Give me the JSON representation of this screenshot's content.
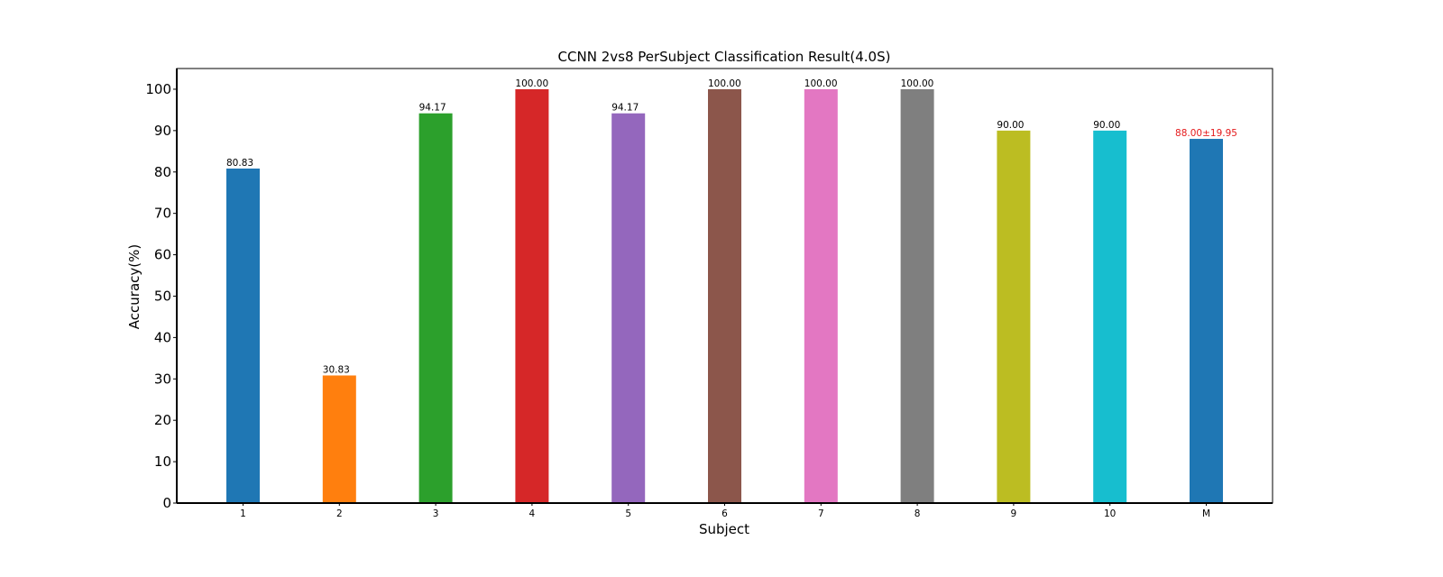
{
  "chart_data": {
    "type": "bar",
    "title": "CCNN 2vs8 PerSubject Classification Result(4.0S)",
    "xlabel": "Subject",
    "ylabel": "Accuracy(%)",
    "ylim": [
      0,
      105
    ],
    "yticks": [
      0,
      10,
      20,
      30,
      40,
      50,
      60,
      70,
      80,
      90,
      100
    ],
    "grid": false,
    "categories": [
      "1",
      "2",
      "3",
      "4",
      "5",
      "6",
      "7",
      "8",
      "9",
      "10",
      "M"
    ],
    "values": [
      80.83,
      30.83,
      94.17,
      100.0,
      94.17,
      100.0,
      100.0,
      100.0,
      90.0,
      90.0,
      88.0
    ],
    "value_labels": [
      "80.83",
      "30.83",
      "94.17",
      "100.00",
      "94.17",
      "100.00",
      "100.00",
      "100.00",
      "90.00",
      "90.00",
      "88.00±19.95"
    ],
    "colors": [
      "#1f77b4",
      "#ff7f0e",
      "#2ca02c",
      "#d62728",
      "#9467bd",
      "#8c564b",
      "#e377c2",
      "#7f7f7f",
      "#bcbd22",
      "#17becf",
      "#1f77b4"
    ],
    "mean_label_color": "#e41a1c"
  }
}
